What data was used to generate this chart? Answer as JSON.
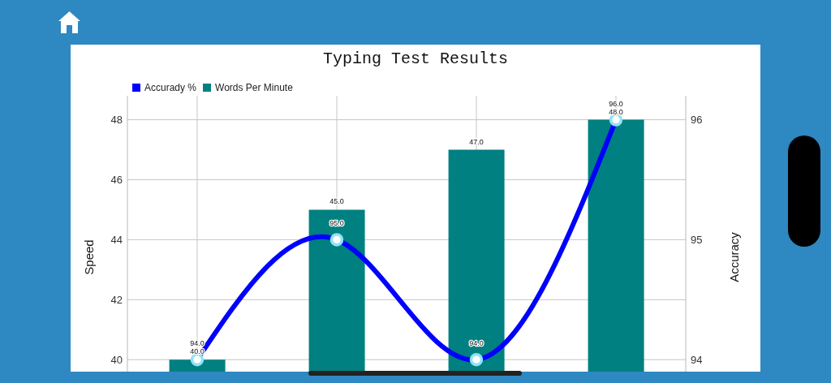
{
  "chart_data": {
    "type": "bar",
    "title": "Typing Test Results",
    "ylabel": "Speed",
    "y2label": "Accuracy",
    "categories": [
      null,
      null,
      null,
      null
    ],
    "series": [
      {
        "name": "Accurady %",
        "type": "line",
        "axis": "y2",
        "color": "#0000ff",
        "values": [
          94,
          95,
          94,
          96
        ],
        "value_labels": [
          "94.0",
          "95.0",
          "94.0",
          "96.0"
        ]
      },
      {
        "name": "Words Per Minute",
        "color": "#008080",
        "values": [
          40,
          45,
          47,
          48
        ],
        "value_labels": [
          "40.0",
          "45.0",
          "47.0",
          "48.0"
        ]
      }
    ],
    "ylim": [
      39.6,
      48.8
    ],
    "yticks": [
      40,
      42,
      44,
      46,
      48
    ],
    "y2lim": [
      93.9,
      96.2
    ],
    "y2ticks": [
      94,
      95,
      96
    ],
    "grid": true,
    "legend": "top left",
    "marker": "circle"
  }
}
